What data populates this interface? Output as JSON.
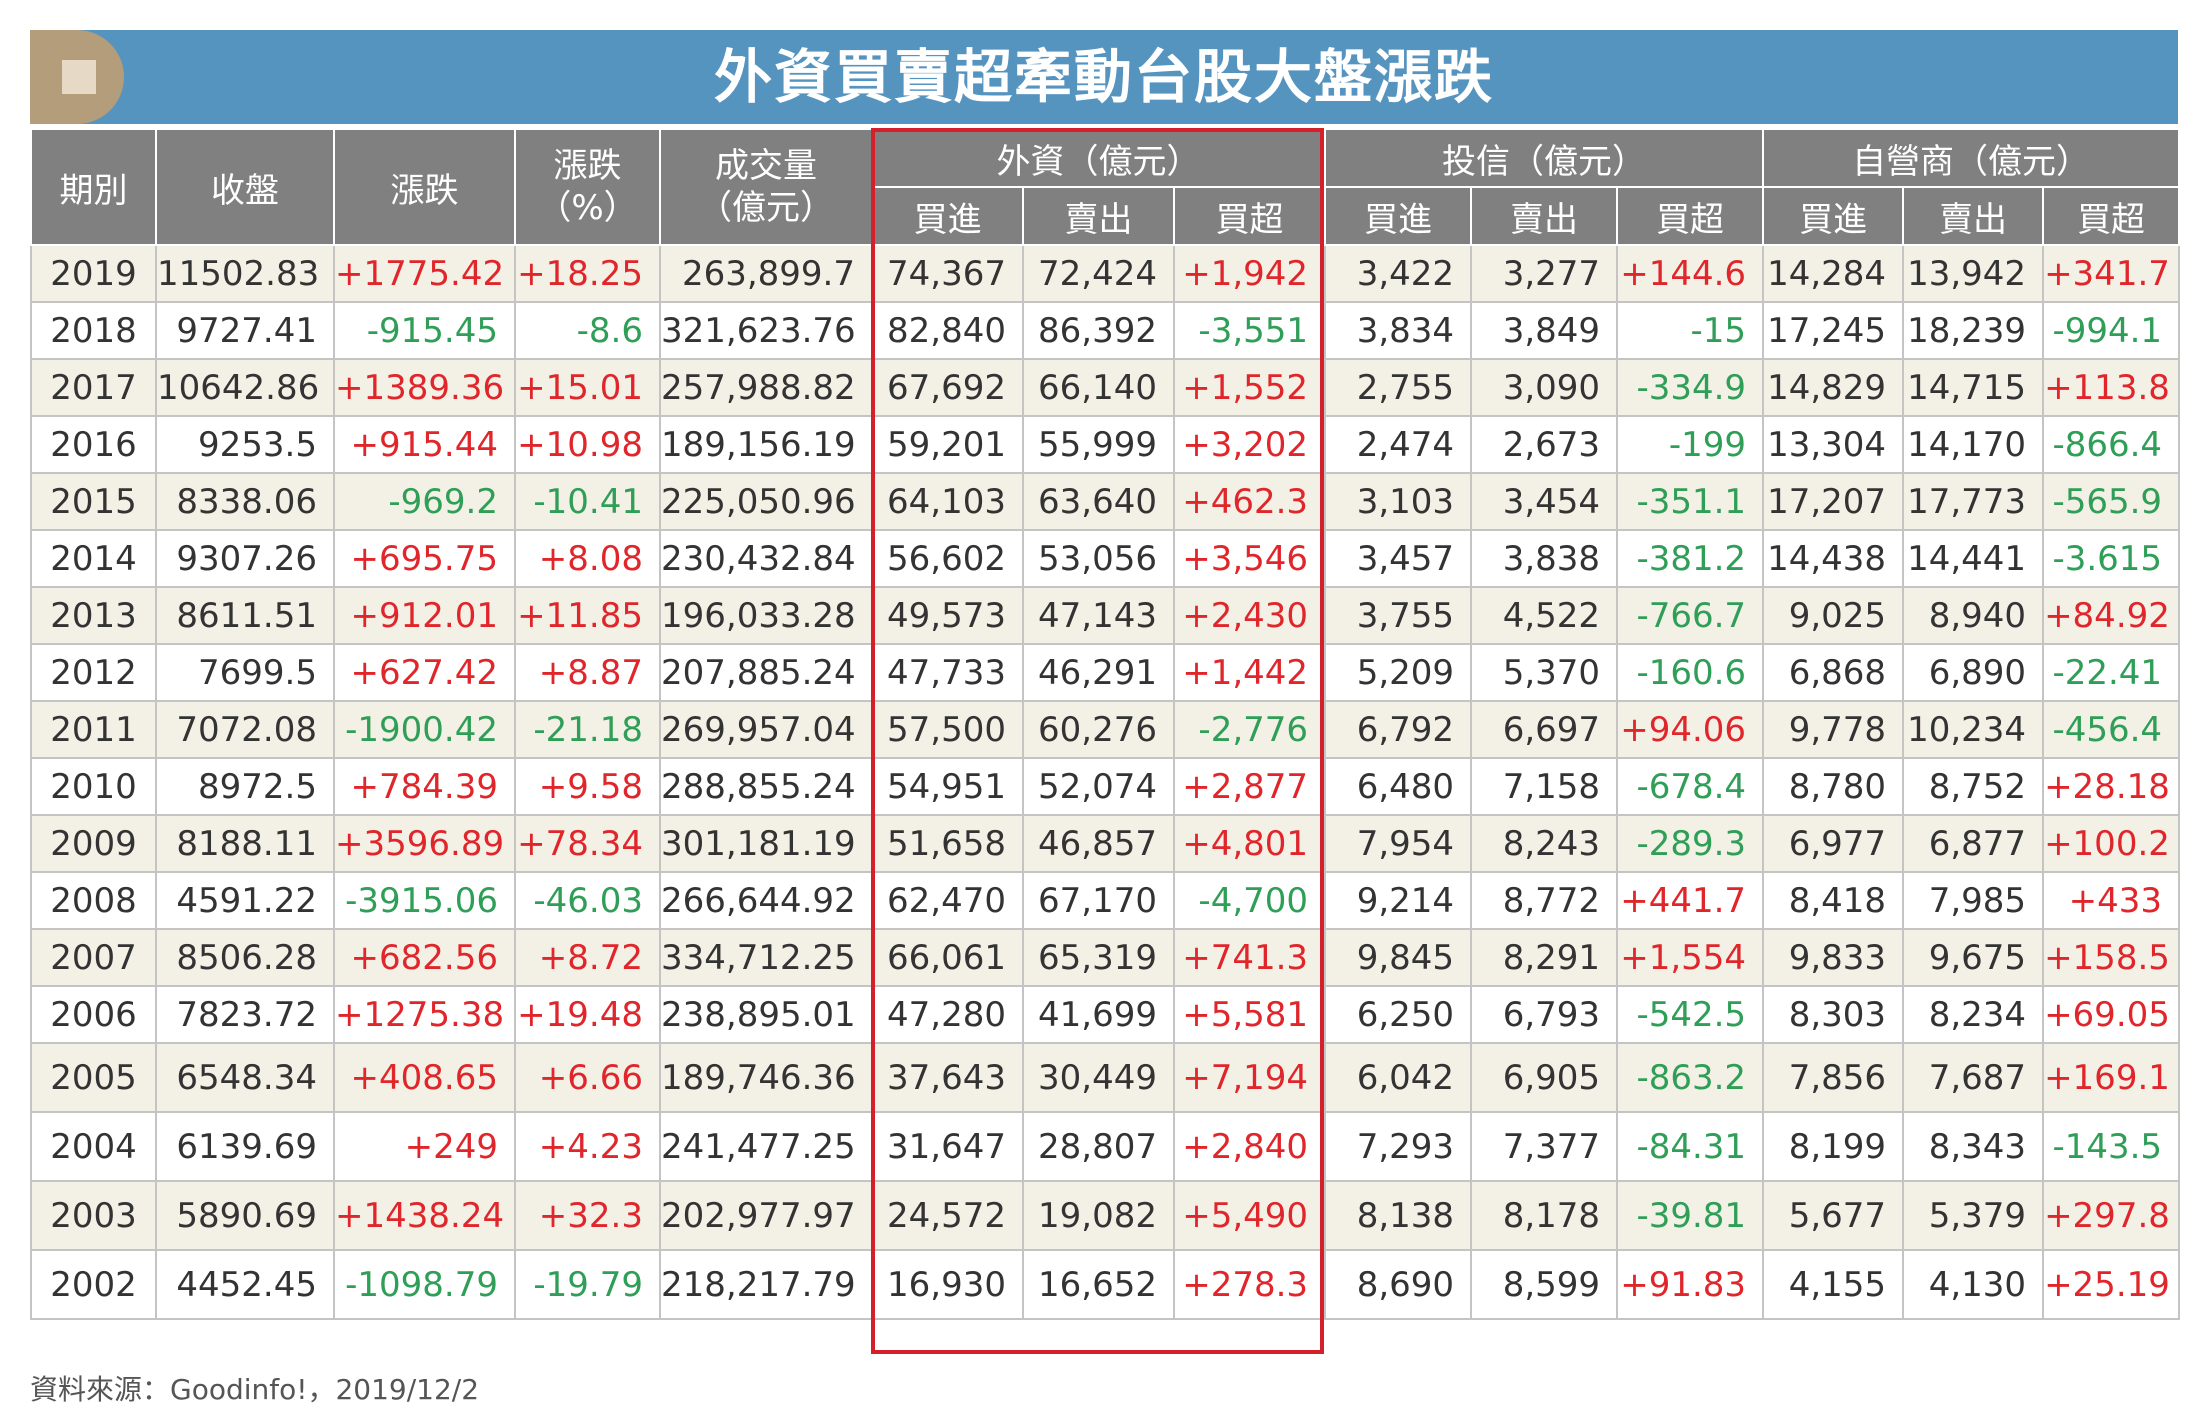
{
  "title": "外資買賣超牽動台股大盤漲跌",
  "source": "資料來源：Goodinfo!，2019/12/2",
  "headers": {
    "period": "期別",
    "close": "收盤",
    "change": "漲跌",
    "change_pct_line1": "漲跌",
    "change_pct_line2": "（%）",
    "volume_line1": "成交量",
    "volume_line2": "（億元）",
    "foreign": "外資（億元）",
    "trust": "投信（億元）",
    "dealer": "自營商（億元）",
    "buy": "買進",
    "sell": "賣出",
    "net": "買超"
  },
  "colors": {
    "positive": "#e0262b",
    "negative": "#2f9e57",
    "header_bg": "#808080",
    "title_bg": "#5694c0",
    "highlight_border": "#d3202a"
  },
  "rows": [
    {
      "year": "2019",
      "close": "11502.83",
      "chg": "+1775.42",
      "pct": "+18.25",
      "vol": "263,899.7",
      "fb": "74,367",
      "fs": "72,424",
      "fn": "+1,942",
      "tb": "3,422",
      "ts": "3,277",
      "tn": "+144.6",
      "db": "14,284",
      "ds": "13,942",
      "dn": "+341.7"
    },
    {
      "year": "2018",
      "close": "9727.41",
      "chg": "-915.45",
      "pct": "-8.6",
      "vol": "321,623.76",
      "fb": "82,840",
      "fs": "86,392",
      "fn": "-3,551",
      "tb": "3,834",
      "ts": "3,849",
      "tn": "-15",
      "db": "17,245",
      "ds": "18,239",
      "dn": "-994.1"
    },
    {
      "year": "2017",
      "close": "10642.86",
      "chg": "+1389.36",
      "pct": "+15.01",
      "vol": "257,988.82",
      "fb": "67,692",
      "fs": "66,140",
      "fn": "+1,552",
      "tb": "2,755",
      "ts": "3,090",
      "tn": "-334.9",
      "db": "14,829",
      "ds": "14,715",
      "dn": "+113.8"
    },
    {
      "year": "2016",
      "close": "9253.5",
      "chg": "+915.44",
      "pct": "+10.98",
      "vol": "189,156.19",
      "fb": "59,201",
      "fs": "55,999",
      "fn": "+3,202",
      "tb": "2,474",
      "ts": "2,673",
      "tn": "-199",
      "db": "13,304",
      "ds": "14,170",
      "dn": "-866.4"
    },
    {
      "year": "2015",
      "close": "8338.06",
      "chg": "-969.2",
      "pct": "-10.41",
      "vol": "225,050.96",
      "fb": "64,103",
      "fs": "63,640",
      "fn": "+462.3",
      "tb": "3,103",
      "ts": "3,454",
      "tn": "-351.1",
      "db": "17,207",
      "ds": "17,773",
      "dn": "-565.9"
    },
    {
      "year": "2014",
      "close": "9307.26",
      "chg": "+695.75",
      "pct": "+8.08",
      "vol": "230,432.84",
      "fb": "56,602",
      "fs": "53,056",
      "fn": "+3,546",
      "tb": "3,457",
      "ts": "3,838",
      "tn": "-381.2",
      "db": "14,438",
      "ds": "14,441",
      "dn": "-3.615"
    },
    {
      "year": "2013",
      "close": "8611.51",
      "chg": "+912.01",
      "pct": "+11.85",
      "vol": "196,033.28",
      "fb": "49,573",
      "fs": "47,143",
      "fn": "+2,430",
      "tb": "3,755",
      "ts": "4,522",
      "tn": "-766.7",
      "db": "9,025",
      "ds": "8,940",
      "dn": "+84.92"
    },
    {
      "year": "2012",
      "close": "7699.5",
      "chg": "+627.42",
      "pct": "+8.87",
      "vol": "207,885.24",
      "fb": "47,733",
      "fs": "46,291",
      "fn": "+1,442",
      "tb": "5,209",
      "ts": "5,370",
      "tn": "-160.6",
      "db": "6,868",
      "ds": "6,890",
      "dn": "-22.41"
    },
    {
      "year": "2011",
      "close": "7072.08",
      "chg": "-1900.42",
      "pct": "-21.18",
      "vol": "269,957.04",
      "fb": "57,500",
      "fs": "60,276",
      "fn": "-2,776",
      "tb": "6,792",
      "ts": "6,697",
      "tn": "+94.06",
      "db": "9,778",
      "ds": "10,234",
      "dn": "-456.4"
    },
    {
      "year": "2010",
      "close": "8972.5",
      "chg": "+784.39",
      "pct": "+9.58",
      "vol": "288,855.24",
      "fb": "54,951",
      "fs": "52,074",
      "fn": "+2,877",
      "tb": "6,480",
      "ts": "7,158",
      "tn": "-678.4",
      "db": "8,780",
      "ds": "8,752",
      "dn": "+28.18"
    },
    {
      "year": "2009",
      "close": "8188.11",
      "chg": "+3596.89",
      "pct": "+78.34",
      "vol": "301,181.19",
      "fb": "51,658",
      "fs": "46,857",
      "fn": "+4,801",
      "tb": "7,954",
      "ts": "8,243",
      "tn": "-289.3",
      "db": "6,977",
      "ds": "6,877",
      "dn": "+100.2"
    },
    {
      "year": "2008",
      "close": "4591.22",
      "chg": "-3915.06",
      "pct": "-46.03",
      "vol": "266,644.92",
      "fb": "62,470",
      "fs": "67,170",
      "fn": "-4,700",
      "tb": "9,214",
      "ts": "8,772",
      "tn": "+441.7",
      "db": "8,418",
      "ds": "7,985",
      "dn": "+433"
    },
    {
      "year": "2007",
      "close": "8506.28",
      "chg": "+682.56",
      "pct": "+8.72",
      "vol": "334,712.25",
      "fb": "66,061",
      "fs": "65,319",
      "fn": "+741.3",
      "tb": "9,845",
      "ts": "8,291",
      "tn": "+1,554",
      "db": "9,833",
      "ds": "9,675",
      "dn": "+158.5"
    },
    {
      "year": "2006",
      "close": "7823.72",
      "chg": "+1275.38",
      "pct": "+19.48",
      "vol": "238,895.01",
      "fb": "47,280",
      "fs": "41,699",
      "fn": "+5,581",
      "tb": "6,250",
      "ts": "6,793",
      "tn": "-542.5",
      "db": "8,303",
      "ds": "8,234",
      "dn": "+69.05"
    },
    {
      "year": "2005",
      "close": "6548.34",
      "chg": "+408.65",
      "pct": "+6.66",
      "vol": "189,746.36",
      "fb": "37,643",
      "fs": "30,449",
      "fn": "+7,194",
      "tb": "6,042",
      "ts": "6,905",
      "tn": "-863.2",
      "db": "7,856",
      "ds": "7,687",
      "dn": "+169.1"
    },
    {
      "year": "2004",
      "close": "6139.69",
      "chg": "+249",
      "pct": "+4.23",
      "vol": "241,477.25",
      "fb": "31,647",
      "fs": "28,807",
      "fn": "+2,840",
      "tb": "7,293",
      "ts": "7,377",
      "tn": "-84.31",
      "db": "8,199",
      "ds": "8,343",
      "dn": "-143.5"
    },
    {
      "year": "2003",
      "close": "5890.69",
      "chg": "+1438.24",
      "pct": "+32.3",
      "vol": "202,977.97",
      "fb": "24,572",
      "fs": "19,082",
      "fn": "+5,490",
      "tb": "8,138",
      "ts": "8,178",
      "tn": "-39.81",
      "db": "5,677",
      "ds": "5,379",
      "dn": "+297.8"
    },
    {
      "year": "2002",
      "close": "4452.45",
      "chg": "-1098.79",
      "pct": "-19.79",
      "vol": "218,217.79",
      "fb": "16,930",
      "fs": "16,652",
      "fn": "+278.3",
      "tb": "8,690",
      "ts": "8,599",
      "tn": "+91.83",
      "db": "4,155",
      "ds": "4,130",
      "dn": "+25.19"
    }
  ]
}
